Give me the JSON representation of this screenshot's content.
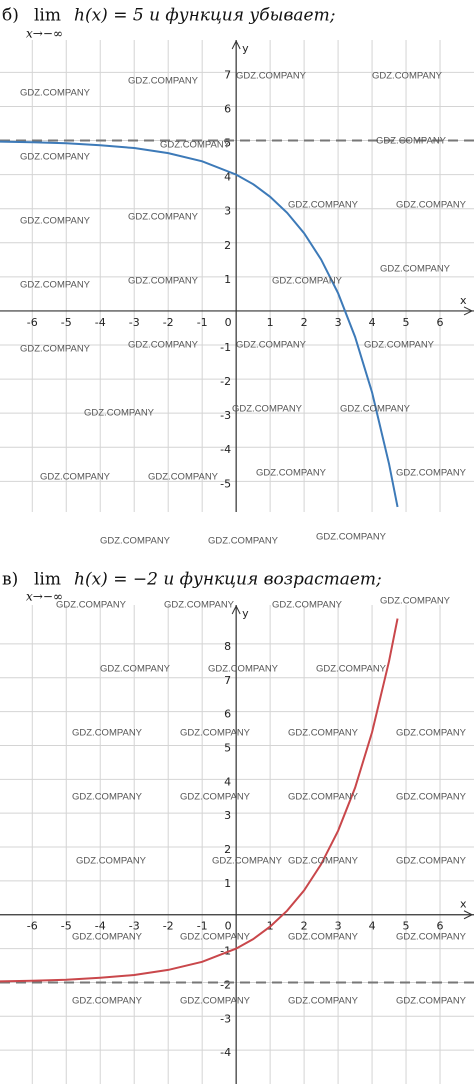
{
  "watermark": "GDZ.COMPANY",
  "chart_data": [
    {
      "type": "line",
      "label": "б)",
      "lim": "lim",
      "lim_sub": "x→−∞",
      "title": "h(x) = 5 и функция убывает;",
      "x_label": "x",
      "y_label": "y",
      "x": [
        -7,
        -6,
        -5,
        -4,
        -3,
        -2,
        -1,
        0,
        0.5,
        1,
        1.5,
        2,
        2.5,
        3,
        3.5,
        4,
        4.5,
        4.75
      ],
      "series": [
        {
          "color": "#3d7ab8",
          "values": [
            4.97,
            4.95,
            4.92,
            4.86,
            4.78,
            4.63,
            4.39,
            4,
            3.72,
            3.35,
            2.88,
            2.28,
            1.51,
            0.52,
            -0.76,
            -2.39,
            -4.49,
            -5.75
          ]
        }
      ],
      "asymptote": 5,
      "xlim": [
        -6.95,
        7.0
      ],
      "ylim": [
        -5.9,
        7.95
      ],
      "xticks": [
        -6,
        -5,
        -4,
        -3,
        -2,
        -1,
        0,
        1,
        2,
        3,
        4,
        5,
        6
      ],
      "yticks": [
        -5,
        -4,
        -3,
        -2,
        -1,
        1,
        2,
        3,
        4,
        5,
        6,
        7
      ],
      "grid": true
    },
    {
      "type": "line",
      "label": "в)",
      "lim": "lim",
      "lim_sub": "x→−∞",
      "title": "h(x) = −2 и функция возрастает;",
      "x_label": "x",
      "y_label": "y",
      "x": [
        -7,
        -6,
        -5,
        -4,
        -3,
        -2,
        -1,
        0,
        0.5,
        1,
        1.5,
        2,
        2.5,
        3,
        3.5,
        4,
        4.5,
        4.75
      ],
      "series": [
        {
          "color": "#c9474b",
          "values": [
            -1.97,
            -1.95,
            -1.92,
            -1.86,
            -1.78,
            -1.63,
            -1.39,
            -1,
            -0.72,
            -0.35,
            0.12,
            0.72,
            1.49,
            2.48,
            3.75,
            5.39,
            7.49,
            8.75
          ]
        }
      ],
      "asymptote": -2,
      "xlim": [
        -6.95,
        7.0
      ],
      "ylim": [
        -5.0,
        9.15
      ],
      "xticks": [
        -6,
        -5,
        -4,
        -3,
        -2,
        -1,
        0,
        1,
        2,
        3,
        4,
        5,
        6
      ],
      "yticks": [
        -4,
        -3,
        -2,
        -1,
        1,
        2,
        3,
        4,
        5,
        6,
        7,
        8
      ],
      "grid": true
    }
  ]
}
